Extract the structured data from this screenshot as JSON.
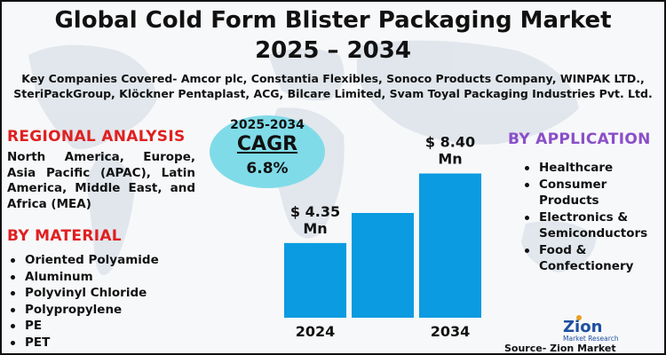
{
  "title_line1": "Global Cold Form Blister Packaging Market",
  "title_line2": "2025 – 2034",
  "companies_line1": "Key Companies Covered- Amcor plc, Constantia Flexibles, Sonoco Products Company, WINPAK LTD.,",
  "companies_line2": "SteriPackGroup, Klöckner Pentaplast, ACG, Bilcare Limited, Svam Toyal Packaging Industries Pvt. Ltd.",
  "regional": {
    "heading": "REGIONAL ANALYSIS",
    "text": "North America, Europe, Asia Pacific (APAC), Latin America, Middle East, and Africa (MEA)"
  },
  "material": {
    "heading": "BY MATERIAL",
    "items": [
      "Oriented Polyamide",
      "Aluminum",
      "Polyvinyl Chloride",
      "Polypropylene",
      "PE",
      "PET"
    ]
  },
  "application": {
    "heading": "BY APPLICATION",
    "items": [
      {
        "line1": "Healthcare",
        "line2": ""
      },
      {
        "line1": "Consumer",
        "line2": "Products"
      },
      {
        "line1": "Electronics &",
        "line2": "Semiconductors"
      },
      {
        "line1": "Food &",
        "line2": "Confectionery"
      }
    ]
  },
  "cagr": {
    "years": "2025-2034",
    "label": "CAGR",
    "value": "6.8%"
  },
  "logo": {
    "brand": "Zion",
    "sub": "Market Research"
  },
  "source": "Source- Zion Market Research",
  "colors": {
    "bar": "#0a9be0",
    "region_heading": "#e02020",
    "application_heading": "#8b4fc8",
    "cagr_circle": "#80dbe8"
  },
  "chart_data": {
    "type": "bar",
    "categories": [
      "2024",
      "",
      "2034"
    ],
    "values": [
      4.35,
      6.1,
      8.4
    ],
    "value_labels": [
      "$ 4.35\nMn",
      "",
      "$ 8.40\nMn"
    ],
    "unit": "Mn",
    "ylim": [
      0,
      9.2
    ]
  }
}
